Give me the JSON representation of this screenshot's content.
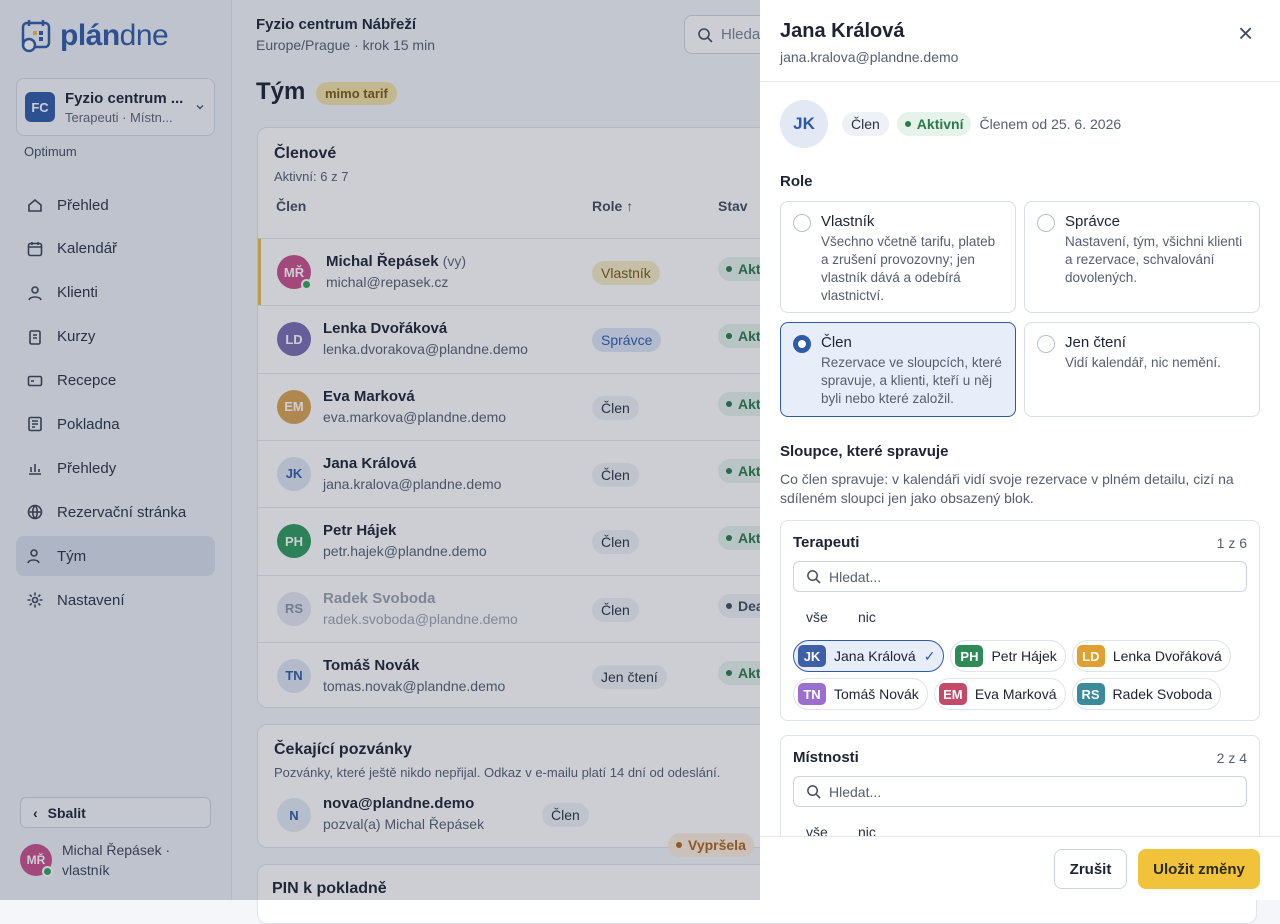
{
  "sidebar": {
    "logo": {
      "bold": "plán",
      "light": "dne"
    },
    "workspace": {
      "initials": "FC",
      "name": "Fyzio centrum ...",
      "subtitle": "Terapeuti · Místn..."
    },
    "plan": "Optimum",
    "nav": [
      {
        "label": "Přehled"
      },
      {
        "label": "Kalendář"
      },
      {
        "label": "Klienti"
      },
      {
        "label": "Kurzy"
      },
      {
        "label": "Recepce"
      },
      {
        "label": "Pokladna"
      },
      {
        "label": "Přehledy"
      },
      {
        "label": "Rezervační stránka"
      },
      {
        "label": "Tým",
        "active": true
      },
      {
        "label": "Nastavení"
      }
    ],
    "collapse": "Sbalit",
    "user": {
      "initials": "MŘ",
      "label": "Michal Řepásek · vlastník"
    }
  },
  "header": {
    "org": "Fyzio centrum Nábřeží",
    "subtitle": "Europe/Prague · krok 15 min",
    "search": "Hledat..."
  },
  "page": {
    "title": "Tým",
    "badge": "mimo tarif"
  },
  "members": {
    "title": "Členové",
    "subtitle": "Aktivní: 6 z 7",
    "columns": [
      "Člen",
      "Role ↑",
      "Stav"
    ],
    "rows": [
      {
        "initials": "MŘ",
        "name": "Michal Řepásek",
        "you": "(vy)",
        "email": "michal@repasek.cz",
        "role": "Vlastník",
        "status": "Aktivní",
        "color": "#c8508a",
        "online": true,
        "highlight": true
      },
      {
        "initials": "LD",
        "name": "Lenka Dvořáková",
        "email": "lenka.dvorakova@plandne.demo",
        "role": "Správce",
        "status": "Aktivní",
        "color": "#7b6bb0"
      },
      {
        "initials": "EM",
        "name": "Eva Marková",
        "email": "eva.markova@plandne.demo",
        "role": "Člen",
        "status": "Aktivní",
        "color": "#d9a352"
      },
      {
        "initials": "JK",
        "name": "Jana Králová",
        "email": "jana.kralova@plandne.demo",
        "role": "Člen",
        "status": "Aktivní",
        "color": "#dfe6f3"
      },
      {
        "initials": "PH",
        "name": "Petr Hájek",
        "email": "petr.hajek@plandne.demo",
        "role": "Člen",
        "status": "Aktivní",
        "color": "#2f9a5c"
      },
      {
        "initials": "RS",
        "name": "Radek Svoboda",
        "email": "radek.svoboda@plandne.demo",
        "role": "Člen",
        "status": "Deaktivován",
        "color": "#e4e8ef",
        "inactive": true
      },
      {
        "initials": "TN",
        "name": "Tomáš Novák",
        "email": "tomas.novak@plandne.demo",
        "role": "Jen čtení",
        "status": "Aktivní",
        "color": "#dfe6f3"
      }
    ]
  },
  "invitations": {
    "title": "Čekající pozvánky",
    "description": "Pozvánky, které ještě nikdo nepřijal. Odkaz v e-mailu platí 14 dní od odeslání.",
    "items": [
      {
        "initials": "N",
        "email": "nova@plandne.demo",
        "invited_by": "pozval(a) Michal Řepásek",
        "role": "Člen",
        "status": "Vypršela"
      }
    ]
  },
  "pin": {
    "title": "PIN k pokladně"
  },
  "drawer": {
    "name": "Jana Králová",
    "email": "jana.kralova@plandne.demo",
    "close": "×",
    "initials": "JK",
    "role_badge": "Člen",
    "status_badge": "Aktivní",
    "member_since": "Členem od 25. 6. 2026",
    "role_heading": "Role",
    "roles": [
      {
        "title": "Vlastník",
        "description": "Všechno včetně tarifu, plateb a zrušení provozovny; jen vlastník dává a odebírá vlastnictví."
      },
      {
        "title": "Správce",
        "description": "Nastavení, tým, všichni klienti a rezervace, schvalování dovolených."
      },
      {
        "title": "Člen",
        "description": "Rezervace ve sloupcích, které spravuje, a klienti, kteří u něj byli nebo které založil.",
        "selected": true
      },
      {
        "title": "Jen čtení",
        "description": "Vidí kalendář, nic nemění."
      }
    ],
    "columns_heading": "Sloupce, které spravuje",
    "columns_description": "Co člen spravuje: v kalendáři vidí svoje rezervace v plném detailu, cizí na sdíleném sloupci jen jako obsazený blok.",
    "groups": [
      {
        "title": "Terapeuti",
        "count": "1 z 6",
        "search": "Hledat...",
        "all": "vše",
        "none": "nic",
        "chips": [
          {
            "initials": "JK",
            "name": "Jana Králová",
            "color": "#3d5fa8",
            "selected": true,
            "check": "✓"
          },
          {
            "initials": "PH",
            "name": "Petr Hájek",
            "color": "#2e8b57"
          },
          {
            "initials": "LD",
            "name": "Lenka Dvořáková",
            "color": "#e0a030"
          },
          {
            "initials": "TN",
            "name": "Tomáš Novák",
            "color": "#9b6fcf"
          },
          {
            "initials": "EM",
            "name": "Eva Marková",
            "color": "#c44a6a"
          },
          {
            "initials": "RS",
            "name": "Radek Svoboda",
            "color": "#3a8a9a"
          }
        ]
      },
      {
        "title": "Místnosti",
        "count": "2 z 4",
        "search": "Hledat...",
        "all": "vše",
        "none": "nic",
        "chips": []
      }
    ],
    "cancel": "Zrušit",
    "save": "Uložit změny"
  }
}
